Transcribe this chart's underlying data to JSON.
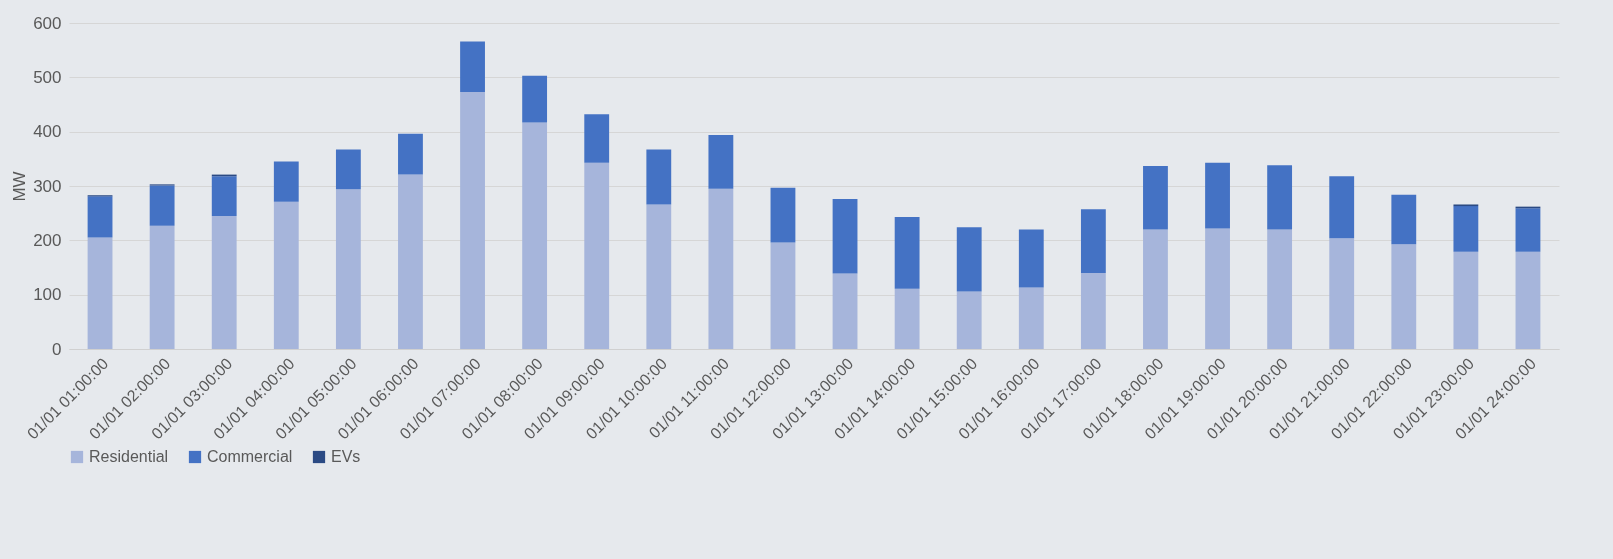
{
  "chart_data": {
    "type": "bar",
    "stacked": true,
    "ylabel": "MW",
    "ylim": [
      0,
      600
    ],
    "yticks": [
      0,
      100,
      200,
      300,
      400,
      500,
      600
    ],
    "grid": "y",
    "legend": "bottom",
    "categories": [
      "01/01  01:00:00",
      "01/01  02:00:00",
      "01/01  03:00:00",
      "01/01  04:00:00",
      "01/01  05:00:00",
      "01/01  06:00:00",
      "01/01  07:00:00",
      "01/01  08:00:00",
      "01/01  09:00:00",
      "01/01  10:00:00",
      "01/01  11:00:00",
      "01/01  12:00:00",
      "01/01  13:00:00",
      "01/01  14:00:00",
      "01/01  15:00:00",
      "01/01  16:00:00",
      "01/01  17:00:00",
      "01/01  18:00:00",
      "01/01  19:00:00",
      "01/01  20:00:00",
      "01/01  21:00:00",
      "01/01  22:00:00",
      "01/01  23:00:00",
      "01/01  24:00:00"
    ],
    "series": [
      {
        "name": "Residential",
        "color": "#a6b5db",
        "values": [
          205,
          227,
          245,
          271,
          294,
          321,
          473,
          417,
          343,
          266,
          295,
          196,
          139,
          111,
          106,
          113,
          140,
          220,
          222,
          220,
          204,
          193,
          179,
          179
        ]
      },
      {
        "name": "Commercial",
        "color": "#4472c4",
        "values": [
          76,
          74,
          73,
          74,
          73,
          75,
          93,
          86,
          89,
          101,
          99,
          101,
          137,
          132,
          118,
          107,
          117,
          117,
          121,
          118,
          114,
          91,
          84,
          80
        ]
      },
      {
        "name": "EVs",
        "color": "#2b4a84",
        "values": [
          2,
          2,
          3,
          0,
          0,
          0,
          0,
          0,
          0,
          0,
          0,
          0,
          0,
          0,
          0,
          0,
          0,
          0,
          0,
          0,
          0,
          0,
          3,
          3
        ]
      }
    ]
  }
}
